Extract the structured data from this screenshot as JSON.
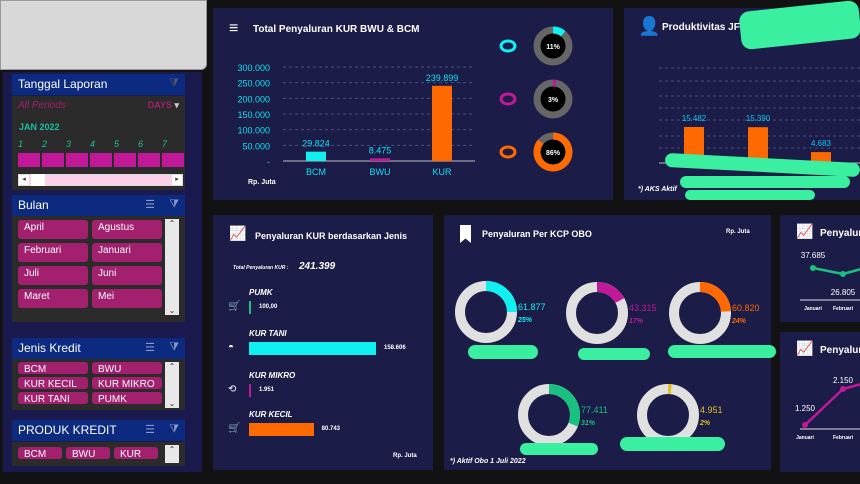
{
  "colors": {
    "cyan": "#10f0f0",
    "magenta": "#c2189a",
    "orange": "#ff6a00",
    "green": "#19c080",
    "yellow": "#e0c020",
    "panel": "#1c1c48"
  },
  "sidebar": {
    "tanggal": {
      "title": "Tanggal Laporan",
      "period": "All Periods",
      "unit": "DAYS",
      "month": "JAN 2022",
      "days": [
        "1",
        "2",
        "3",
        "4",
        "5",
        "6",
        "7"
      ]
    },
    "bulan": {
      "title": "Bulan",
      "items": [
        "April",
        "Agustus",
        "Februari",
        "Januari",
        "Juli",
        "Juni",
        "Maret",
        "Mei"
      ]
    },
    "jenis": {
      "title": "Jenis Kredit",
      "items": [
        "BCM",
        "BWU",
        "KUR KECIL",
        "KUR MIKRO",
        "KUR TANI",
        "PUMK"
      ]
    },
    "produk": {
      "title": "PRODUK KREDIT",
      "items": [
        "BCM",
        "BWU",
        "KUR"
      ]
    }
  },
  "chart_data": [
    {
      "type": "bar",
      "title": "Total Penyaluran KUR BWU & BCM",
      "categories": [
        "BCM",
        "BWU",
        "KUR"
      ],
      "values": [
        29824,
        8475,
        239899
      ],
      "value_labels": [
        "29.824",
        "8.475",
        "239.899"
      ],
      "colors": [
        "#10f0f0",
        "#c2189a",
        "#ff6a00"
      ],
      "ylim": [
        0,
        300000
      ],
      "yticks": [
        "300.000",
        "250.000",
        "200.000",
        "150.000",
        "100.000",
        "50.000",
        "-"
      ],
      "ylabel": "Rp. Juta",
      "grid": true,
      "share": [
        {
          "label": "11%",
          "value": 11,
          "color": "#10f0f0"
        },
        {
          "label": "3%",
          "value": 3,
          "color": "#c2189a"
        },
        {
          "label": "86%",
          "value": 86,
          "color": "#ff6a00"
        }
      ]
    },
    {
      "type": "bar",
      "title": "Produktivitas JF",
      "values": [
        15482,
        15390,
        4683
      ],
      "value_labels": [
        "15.482",
        "15.390",
        "4.683"
      ],
      "note": "*) AKS Aktif"
    },
    {
      "type": "bar",
      "title": "Penyaluran KUR berdasarkan Jenis",
      "total_label": "Total Penyaluran KUR :",
      "total": "241.399",
      "unit": "Rp. Juta",
      "items": [
        {
          "name": "PUMK",
          "value": 100,
          "label": "100,00",
          "color": "#19c080",
          "icon": "cart-icon"
        },
        {
          "name": "KUR TANI",
          "value": 158606,
          "label": "158.606",
          "color": "#10f0f0",
          "icon": "bowl-icon"
        },
        {
          "name": "KUR MIKRO",
          "value": 1951,
          "label": "1.951",
          "color": "#c2189a",
          "icon": "cycle-icon"
        },
        {
          "name": "KUR KECIL",
          "value": 80743,
          "label": "80.743",
          "color": "#ff6a00",
          "icon": "cart-icon"
        }
      ]
    },
    {
      "type": "pie",
      "title": "Penyaluran Per KCP OBO",
      "unit": "Rp. Juta",
      "note": "*) Aktif Obo 1 Juli 2022",
      "items": [
        {
          "value": "61.877",
          "pct": 25,
          "pct_label": "25%",
          "color": "#10f0f0"
        },
        {
          "value": "43.315",
          "pct": 17,
          "pct_label": "17%",
          "color": "#c2189a"
        },
        {
          "value": "60.820",
          "pct": 24,
          "pct_label": "24%",
          "color": "#ff6a00"
        },
        {
          "value": "77.411",
          "pct": 31,
          "pct_label": "31%",
          "color": "#19c080"
        },
        {
          "value": "4.951",
          "pct": 2,
          "pct_label": "2%",
          "color": "#e0c020"
        }
      ]
    },
    {
      "type": "line",
      "title": "Penyalur",
      "categories": [
        "Januari",
        "Februari"
      ],
      "values": [
        37685,
        26805
      ],
      "value_labels": [
        "37.685",
        "26.805"
      ],
      "color": "#19c080"
    },
    {
      "type": "line",
      "title": "Penyalur",
      "categories": [
        "Januari",
        "Februari"
      ],
      "values": [
        1250,
        2150
      ],
      "value_labels": [
        "1.250",
        "2.150"
      ],
      "color": "#c2189a"
    }
  ]
}
